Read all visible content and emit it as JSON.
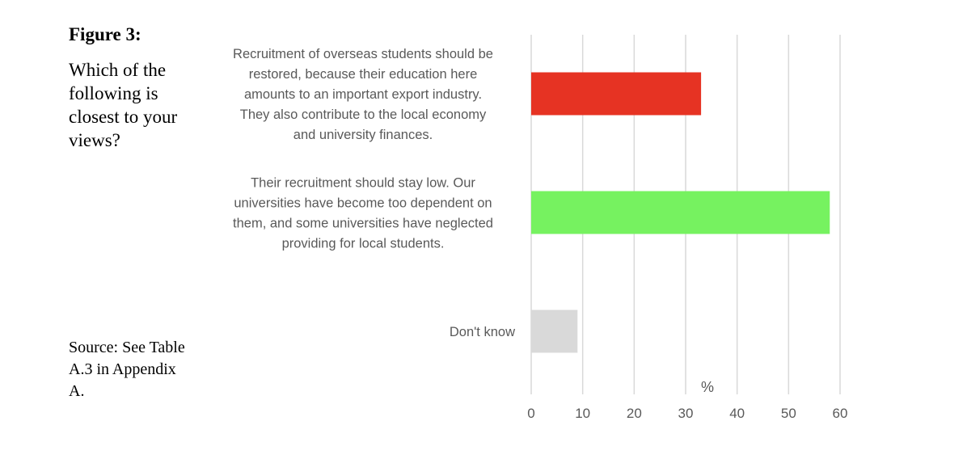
{
  "figure": {
    "label": "Figure 3:",
    "question": "Which of the following is closest to your views?",
    "source": "Source: See Table A.3 in Appendix A."
  },
  "chart_data": {
    "type": "bar",
    "orientation": "horizontal",
    "categories": [
      "Recruitment of overseas students should be restored, because their education here amounts to an important export industry. They also contribute to the local economy and university finances.",
      "Their recruitment should stay low. Our universities have become too dependent on them, and some universities have neglected providing for local students.",
      "Don't know"
    ],
    "category_lines": [
      [
        "Recruitment of overseas students should be",
        "restored, because their education here",
        "amounts to an important export industry.",
        "They also contribute to the local economy",
        "and university finances."
      ],
      [
        "Their recruitment should stay low. Our",
        "universities have become too dependent on",
        "them, and some universities have neglected",
        "providing for local students."
      ],
      [
        "Don't know"
      ]
    ],
    "values": [
      33,
      58,
      9
    ],
    "colors": [
      "#e63323",
      "#76f260",
      "#d9d9d9"
    ],
    "xlabel": "%",
    "xlim": [
      0,
      60
    ],
    "xticks": [
      0,
      10,
      20,
      30,
      40,
      50,
      60
    ],
    "grid": true,
    "legend": "none"
  }
}
